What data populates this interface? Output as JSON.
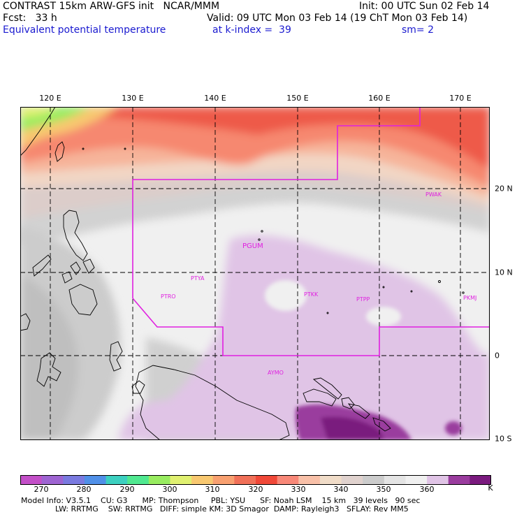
{
  "header": {
    "line1_left": "CONTRAST 15km ARW-GFS init   NCAR/MMM",
    "line1_right": "Init: 00 UTC Sun 02 Feb 14",
    "fcst": "Fcst:   33 h",
    "valid": "Valid: 09 UTC Mon 03 Feb 14 (19 ChT Mon 03 Feb 14)",
    "field": "Equivalent potential temperature",
    "level": "at k-index =  39",
    "smooth": "sm= 2"
  },
  "lon_labels": [
    "120 E",
    "130 E",
    "140 E",
    "150 E",
    "160 E",
    "170 E"
  ],
  "lat_labels": [
    "20 N",
    "10 N",
    "0",
    "10 S"
  ],
  "stations": [
    "PWAK",
    "PGUM",
    "PTYA",
    "PTRO",
    "PTKK",
    "PTPP",
    "PKMJ",
    "AYMO"
  ],
  "colorbar": {
    "labels": [
      "270",
      "280",
      "290",
      "300",
      "310",
      "320",
      "330",
      "340",
      "350",
      "360",
      "K"
    ],
    "colors": [
      "#c34fc8",
      "#9e64d2",
      "#7a7ae0",
      "#5090e8",
      "#3cd0c0",
      "#50e890",
      "#98ec60",
      "#e0f070",
      "#f8c870",
      "#f8a070",
      "#f07058",
      "#f04838",
      "#f88878",
      "#f8c0a8",
      "#f0dcc8",
      "#e0d2ce",
      "#cccccc",
      "#e4e4e4",
      "#f0f0f0",
      "#e0c4e6",
      "#9a3c9e",
      "#7a1a7e"
    ]
  },
  "footer": {
    "line1": "Model Info: V3.5.1    CU: G3      MP: Thompson     PBL: YSU      SF: Noah LSM    15 km   39 levels   90 sec",
    "line2": "              LW: RRTMG    SW: RRTMG   DIFF: simple KM: 3D Smagor  DAMP: Rayleigh3   SFLAY: Rev MM5"
  }
}
